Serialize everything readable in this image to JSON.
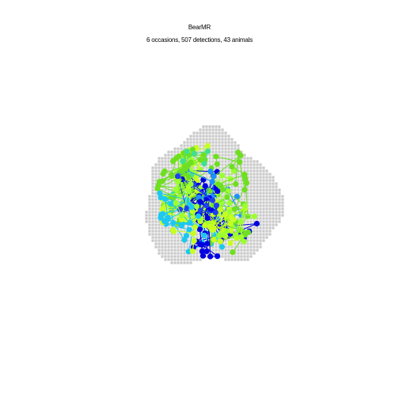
{
  "plot": {
    "title": "BearMR",
    "subtitle": "6 occasions, 507 detections, 43 animals"
  },
  "colors": {
    "background": "#ffffff",
    "mask_points": "#c8c8c8",
    "series_palette": [
      "#0000e0",
      "#1e40f0",
      "#1f90ff",
      "#1cc8f0",
      "#40e090",
      "#6ee020",
      "#9cff30",
      "#c8ff20"
    ]
  }
}
